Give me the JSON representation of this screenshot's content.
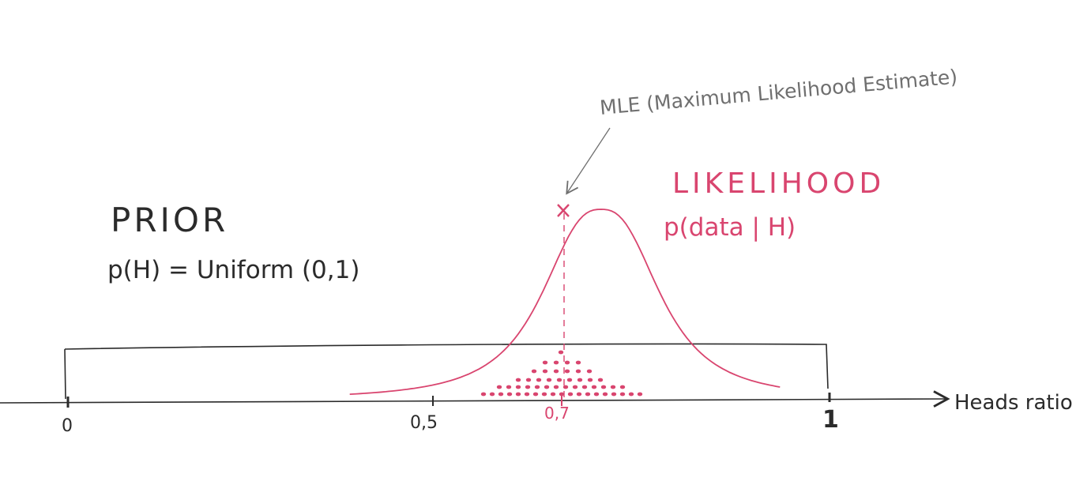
{
  "colors": {
    "ink": "#2b2b2b",
    "likelihood": "#d9456f",
    "annotation": "#6f6f6f"
  },
  "prior": {
    "title": "PRIOR",
    "formula": "p(H) = Uniform (0,1)"
  },
  "likelihood": {
    "title": "LIKELIHOOD",
    "formula": "p(data | H)"
  },
  "mle": {
    "label": "MLE (Maximum Likelihood Estimate)",
    "value": 0.7
  },
  "axis": {
    "label": "Heads ratio",
    "ticks": [
      "0",
      "0,5",
      "0,7",
      "1"
    ]
  },
  "chart_data": {
    "type": "line",
    "x_range": [
      0,
      1
    ],
    "series": [
      {
        "name": "PRIOR",
        "x": [
          0,
          1
        ],
        "y": [
          1,
          1
        ]
      },
      {
        "name": "LIKELIHOOD",
        "peak_x": 0.7
      }
    ]
  }
}
